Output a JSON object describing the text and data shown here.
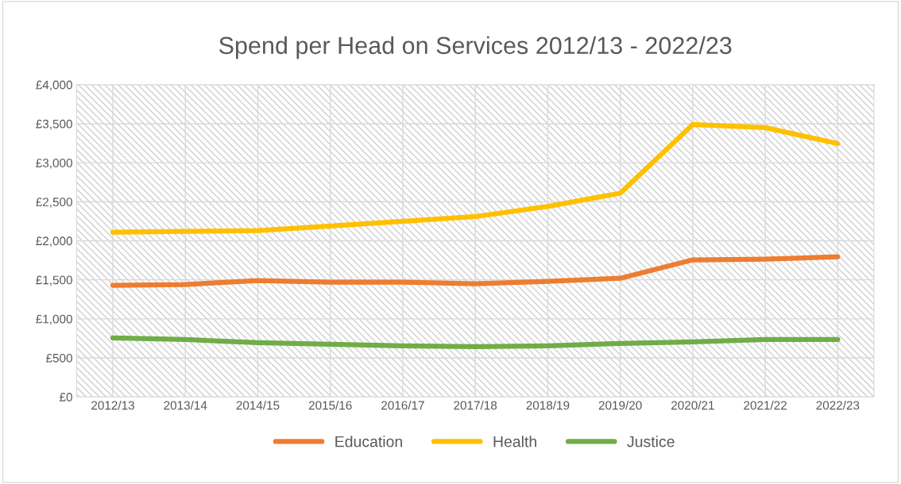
{
  "chart_data": {
    "type": "line",
    "title": "Spend per Head on Services 2012/13 - 2022/23",
    "categories": [
      "2012/13",
      "2013/14",
      "2014/15",
      "2015/16",
      "2016/17",
      "2017/18",
      "2018/19",
      "2019/20",
      "2020/21",
      "2021/22",
      "2022/23"
    ],
    "series": [
      {
        "name": "Education",
        "color": "#ed7d31",
        "values": [
          1430,
          1440,
          1490,
          1470,
          1470,
          1450,
          1480,
          1520,
          1755,
          1765,
          1795
        ]
      },
      {
        "name": "Health",
        "color": "#ffc000",
        "values": [
          2110,
          2120,
          2130,
          2190,
          2250,
          2310,
          2440,
          2610,
          3490,
          3450,
          3245
        ]
      },
      {
        "name": "Justice",
        "color": "#70ad47",
        "values": [
          755,
          735,
          695,
          675,
          655,
          645,
          655,
          685,
          705,
          735,
          735
        ]
      }
    ],
    "ylim": [
      0,
      4000
    ],
    "yticks": [
      {
        "value": 0,
        "label": "£0"
      },
      {
        "value": 500,
        "label": "£500"
      },
      {
        "value": 1000,
        "label": "£1,000"
      },
      {
        "value": 1500,
        "label": "£1,500"
      },
      {
        "value": 2000,
        "label": "£2,000"
      },
      {
        "value": 2500,
        "label": "£2,500"
      },
      {
        "value": 3000,
        "label": "£3,000"
      },
      {
        "value": 3500,
        "label": "£3,500"
      },
      {
        "value": 4000,
        "label": "£4,000"
      }
    ],
    "grid": true,
    "legend": "bottom",
    "marker": "none",
    "line_style": "solid"
  }
}
